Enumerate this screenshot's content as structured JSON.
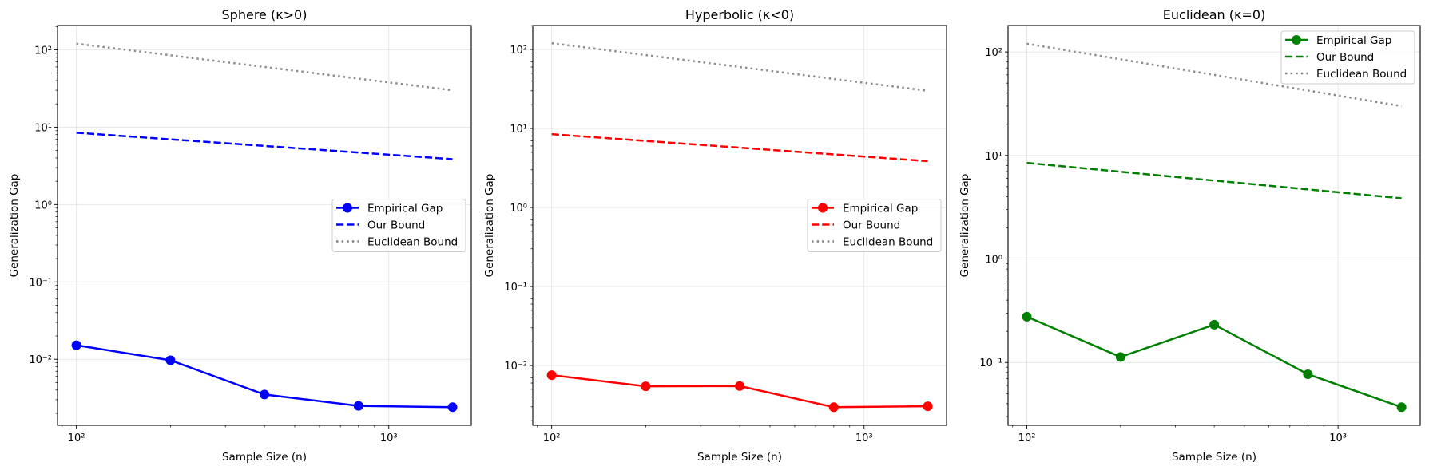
{
  "chart_data": [
    {
      "type": "line",
      "title": "Sphere (κ>0)",
      "xlabel": "Sample Size (n)",
      "ylabel": "Generalization Gap",
      "xscale": "log",
      "yscale": "log",
      "xlim": [
        87,
        1837
      ],
      "ylim": [
        0.0014,
        206
      ],
      "xticks": [
        100,
        1000
      ],
      "xtick_labels": [
        "10²",
        "10³"
      ],
      "yticks": [
        0.01,
        0.1,
        1,
        10,
        100
      ],
      "ytick_labels": [
        "10⁻²",
        "10⁻¹",
        "10⁰",
        "10¹",
        "10²"
      ],
      "grid": true,
      "legend_placement": "center right",
      "x": [
        100,
        200,
        400,
        800,
        1600
      ],
      "series": [
        {
          "name": "Empirical Gap",
          "style": "solid-marker",
          "color": "#0000ff",
          "values": [
            0.0152,
            0.0097,
            0.0035,
            0.0025,
            0.0024
          ]
        },
        {
          "name": "Our Bound",
          "style": "dashed",
          "color": "#0000ff",
          "values": [
            8.47,
            6.96,
            5.72,
            4.7,
            3.86
          ]
        },
        {
          "name": "Euclidean Bound",
          "style": "dotted",
          "color": "#808080",
          "values": [
            120,
            84.9,
            60,
            42.4,
            30
          ]
        }
      ]
    },
    {
      "type": "line",
      "title": "Hyperbolic (κ<0)",
      "xlabel": "Sample Size (n)",
      "ylabel": "Generalization Gap",
      "xscale": "log",
      "yscale": "log",
      "xlim": [
        87,
        1837
      ],
      "ylim": [
        0.00175,
        201
      ],
      "xticks": [
        100,
        1000
      ],
      "xtick_labels": [
        "10²",
        "10³"
      ],
      "yticks": [
        0.01,
        0.1,
        1,
        10,
        100
      ],
      "ytick_labels": [
        "10⁻²",
        "10⁻¹",
        "10⁰",
        "10¹",
        "10²"
      ],
      "grid": true,
      "legend_placement": "center right",
      "x": [
        100,
        200,
        400,
        800,
        1600
      ],
      "series": [
        {
          "name": "Empirical Gap",
          "style": "solid-marker",
          "color": "#ff0000",
          "values": [
            0.00755,
            0.00545,
            0.0055,
            0.00297,
            0.00305
          ]
        },
        {
          "name": "Our Bound",
          "style": "dashed",
          "color": "#ff0000",
          "values": [
            8.47,
            6.96,
            5.72,
            4.7,
            3.86
          ]
        },
        {
          "name": "Euclidean Bound",
          "style": "dotted",
          "color": "#808080",
          "values": [
            120,
            84.9,
            60,
            42.4,
            30
          ]
        }
      ]
    },
    {
      "type": "line",
      "title": "Euclidean (κ=0)",
      "xlabel": "Sample Size (n)",
      "ylabel": "Generalization Gap",
      "xscale": "log",
      "yscale": "log",
      "xlim": [
        87,
        1837
      ],
      "ylim": [
        0.0247,
        180
      ],
      "xticks": [
        100,
        1000
      ],
      "xtick_labels": [
        "10²",
        "10³"
      ],
      "yticks": [
        0.1,
        1,
        10,
        100
      ],
      "ytick_labels": [
        "10⁻¹",
        "10⁰",
        "10¹",
        "10²"
      ],
      "grid": true,
      "legend_placement": "upper right",
      "x": [
        100,
        200,
        400,
        800,
        1600
      ],
      "series": [
        {
          "name": "Empirical Gap",
          "style": "solid-marker",
          "color": "#008000",
          "values": [
            0.277,
            0.113,
            0.232,
            0.077,
            0.037
          ]
        },
        {
          "name": "Our Bound",
          "style": "dashed",
          "color": "#008000",
          "values": [
            8.47,
            6.96,
            5.72,
            4.7,
            3.86
          ]
        },
        {
          "name": "Euclidean Bound",
          "style": "dotted",
          "color": "#808080",
          "values": [
            120,
            84.9,
            60,
            42.4,
            30
          ]
        }
      ]
    }
  ]
}
